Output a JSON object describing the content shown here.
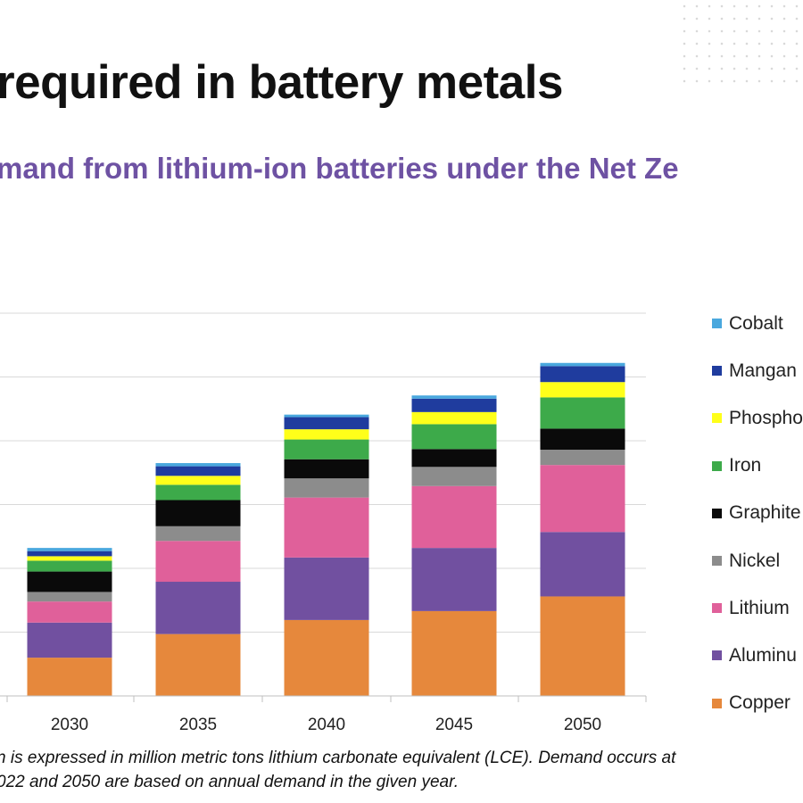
{
  "title": "required in battery metals",
  "subtitle": "mand from lithium-ion batteries under the Net Ze",
  "footnote": {
    "line1": "n is expressed in million metric tons lithium carbonate equivalent (LCE). Demand occurs at",
    "line2": "022 and 2050 are based on annual demand in the given year."
  },
  "chart_data": {
    "type": "bar",
    "stacked": true,
    "categories": [
      "2030",
      "2035",
      "2040",
      "2045",
      "2050"
    ],
    "ylim": [
      0,
      6
    ],
    "grid": true,
    "legend_position": "right",
    "series": [
      {
        "name": "Copper",
        "color": "#e6883c",
        "values": [
          0.6,
          0.97,
          1.19,
          1.33,
          1.56
        ]
      },
      {
        "name": "Aluminu",
        "color": "#7150a0",
        "values": [
          0.55,
          0.82,
          0.98,
          0.99,
          1.01
        ]
      },
      {
        "name": "Lithium",
        "color": "#e0609a",
        "values": [
          0.33,
          0.64,
          0.94,
          0.97,
          1.05
        ]
      },
      {
        "name": "Nickel",
        "color": "#8c8c8c",
        "values": [
          0.15,
          0.23,
          0.3,
          0.3,
          0.24
        ]
      },
      {
        "name": "Graphite",
        "color": "#0a0a0a",
        "values": [
          0.32,
          0.41,
          0.3,
          0.28,
          0.33
        ]
      },
      {
        "name": "Iron",
        "color": "#3daa4a",
        "values": [
          0.17,
          0.24,
          0.31,
          0.39,
          0.49
        ]
      },
      {
        "name": "Phospho",
        "color": "#ffff1a",
        "values": [
          0.07,
          0.14,
          0.16,
          0.19,
          0.24
        ]
      },
      {
        "name": "Mangan",
        "color": "#1f3c9e",
        "values": [
          0.08,
          0.15,
          0.19,
          0.21,
          0.25
        ]
      },
      {
        "name": "Cobalt",
        "color": "#4aa8de",
        "values": [
          0.05,
          0.05,
          0.04,
          0.05,
          0.05
        ]
      }
    ]
  }
}
